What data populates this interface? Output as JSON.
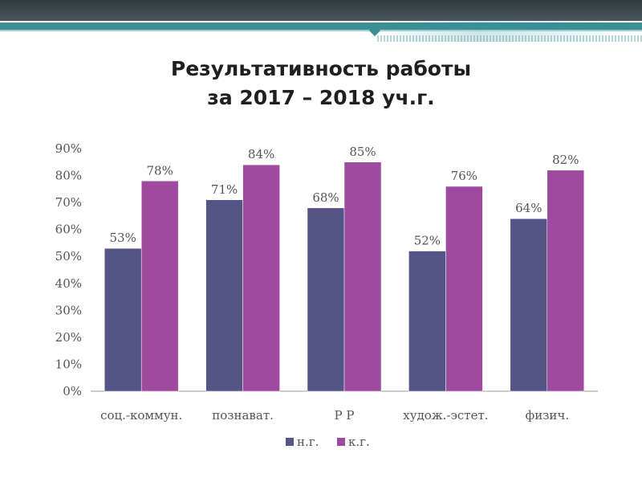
{
  "slide": {
    "title_line1": "Результативность работы",
    "title_line2": "за 2017 – 2018 уч.г."
  },
  "colors": {
    "band": "#3d474b",
    "teal": "#3a8f95",
    "series_ng": "#545487",
    "series_kg": "#9e4a9e"
  },
  "chart_data": {
    "type": "bar",
    "title": "",
    "xlabel": "",
    "ylabel": "",
    "categories": [
      "соц.-коммун.",
      "познават.",
      "Р Р",
      "худож.-эстет.",
      "физич."
    ],
    "series": [
      {
        "name": "н.г.",
        "color": "#545487",
        "values": [
          53,
          71,
          68,
          52,
          64
        ],
        "labels": [
          "53%",
          "71%",
          "68%",
          "52%",
          "64%"
        ]
      },
      {
        "name": "к.г.",
        "color": "#9e4a9e",
        "values": [
          78,
          84,
          85,
          76,
          82
        ],
        "labels": [
          "78%",
          "84%",
          "85%",
          "76%",
          "82%"
        ]
      }
    ],
    "ylim": [
      0,
      90
    ],
    "yticks": [
      "0%",
      "10%",
      "20%",
      "30%",
      "40%",
      "50%",
      "60%",
      "70%",
      "80%",
      "90%"
    ],
    "grid": false,
    "legend_position": "bottom"
  }
}
